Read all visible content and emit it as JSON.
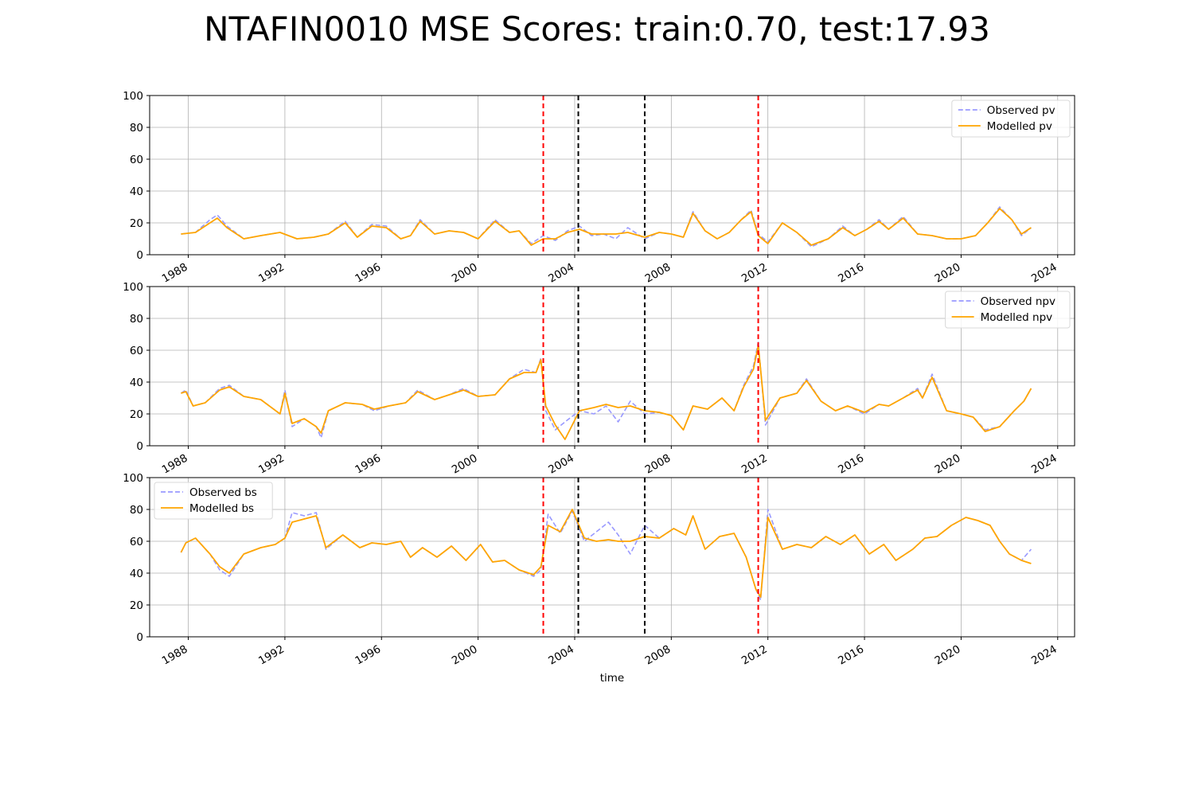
{
  "title": "NTAFIN0010 MSE Scores: train:0.70, test:17.93",
  "colors": {
    "observed": "#9999ff",
    "modelled": "#ffa500",
    "red_vline": "#ff0000",
    "black_vline": "#000000",
    "grid": "#b0b0b0"
  },
  "chart_data": [
    {
      "type": "line",
      "panel": "pv",
      "title": "",
      "xlabel": "",
      "ylabel": "",
      "ylim": [
        0,
        100
      ],
      "yticks": [
        0,
        20,
        40,
        60,
        80,
        100
      ],
      "xlim": [
        1986.4,
        2024.7
      ],
      "xticks": [
        1988,
        1992,
        1996,
        2000,
        2004,
        2008,
        2012,
        2016,
        2020,
        2024
      ],
      "grid": true,
      "legend_position": "upper right",
      "vertical_lines": [
        {
          "x": 2002.7,
          "color": "red"
        },
        {
          "x": 2004.15,
          "color": "black"
        },
        {
          "x": 2006.9,
          "color": "black"
        },
        {
          "x": 2011.6,
          "color": "red"
        }
      ],
      "series": [
        {
          "name": "Observed pv",
          "style": "dashed",
          "x": [
            1987.7,
            1988.3,
            1988.9,
            1989.2,
            1989.6,
            1990.3,
            1991.0,
            1991.8,
            1992.5,
            1993.2,
            1993.8,
            1994.5,
            1995.0,
            1995.6,
            1996.2,
            1996.8,
            1997.2,
            1997.6,
            1998.2,
            1998.8,
            1999.4,
            2000.0,
            2000.7,
            2001.3,
            2001.7,
            2002.2,
            2002.7,
            2003.2,
            2003.7,
            2004.2,
            2004.7,
            2005.2,
            2005.7,
            2006.2,
            2006.9,
            2007.5,
            2008.0,
            2008.5,
            2008.9,
            2009.4,
            2009.9,
            2010.4,
            2010.9,
            2011.3,
            2011.6,
            2012.0,
            2012.6,
            2013.2,
            2013.8,
            2014.5,
            2015.1,
            2015.6,
            2016.1,
            2016.6,
            2017.0,
            2017.6,
            2018.2,
            2018.8,
            2019.4,
            2020.0,
            2020.6,
            2021.1,
            2021.6,
            2022.1,
            2022.5,
            2022.9
          ],
          "y": [
            13,
            14,
            22,
            25,
            18,
            10,
            12,
            14,
            10,
            11,
            13,
            21,
            11,
            19,
            18,
            10,
            12,
            22,
            13,
            15,
            14,
            10,
            22,
            14,
            15,
            7,
            12,
            9,
            15,
            18,
            12,
            13,
            10,
            17,
            10,
            14,
            13,
            11,
            27,
            15,
            10,
            14,
            22,
            28,
            13,
            8,
            20,
            14,
            5,
            10,
            18,
            12,
            16,
            22,
            16,
            24,
            13,
            12,
            10,
            10,
            12,
            20,
            30,
            22,
            12,
            17
          ]
        },
        {
          "name": "Modelled pv",
          "style": "solid",
          "x": [
            1987.7,
            1988.3,
            1988.9,
            1989.2,
            1989.6,
            1990.3,
            1991.0,
            1991.8,
            1992.5,
            1993.2,
            1993.8,
            1994.5,
            1995.0,
            1995.6,
            1996.2,
            1996.8,
            1997.2,
            1997.6,
            1998.2,
            1998.8,
            1999.4,
            2000.0,
            2000.7,
            2001.3,
            2001.7,
            2002.2,
            2002.7,
            2003.2,
            2003.7,
            2004.2,
            2004.7,
            2005.2,
            2005.7,
            2006.2,
            2006.9,
            2007.5,
            2008.0,
            2008.5,
            2008.9,
            2009.4,
            2009.9,
            2010.4,
            2010.9,
            2011.3,
            2011.6,
            2012.0,
            2012.6,
            2013.2,
            2013.8,
            2014.5,
            2015.1,
            2015.6,
            2016.1,
            2016.6,
            2017.0,
            2017.6,
            2018.2,
            2018.8,
            2019.4,
            2020.0,
            2020.6,
            2021.1,
            2021.6,
            2022.1,
            2022.5,
            2022.9
          ],
          "y": [
            13,
            14,
            20,
            23,
            17,
            10,
            12,
            14,
            10,
            11,
            13,
            20,
            11,
            18,
            17,
            10,
            12,
            21,
            13,
            15,
            14,
            10,
            21,
            14,
            15,
            6,
            10,
            10,
            14,
            16,
            13,
            13,
            13,
            14,
            11,
            14,
            13,
            11,
            26,
            15,
            10,
            14,
            22,
            27,
            12,
            7,
            20,
            14,
            6,
            10,
            17,
            12,
            16,
            21,
            16,
            23,
            13,
            12,
            10,
            10,
            12,
            20,
            29,
            22,
            13,
            17
          ]
        }
      ]
    },
    {
      "type": "line",
      "panel": "npv",
      "title": "",
      "xlabel": "",
      "ylabel": "",
      "ylim": [
        0,
        100
      ],
      "yticks": [
        0,
        20,
        40,
        60,
        80,
        100
      ],
      "xlim": [
        1986.4,
        2024.7
      ],
      "xticks": [
        1988,
        1992,
        1996,
        2000,
        2004,
        2008,
        2012,
        2016,
        2020,
        2024
      ],
      "grid": true,
      "legend_position": "upper right",
      "vertical_lines": [
        {
          "x": 2002.7,
          "color": "red"
        },
        {
          "x": 2004.15,
          "color": "black"
        },
        {
          "x": 2006.9,
          "color": "black"
        },
        {
          "x": 2011.6,
          "color": "red"
        }
      ],
      "series": [
        {
          "name": "Observed npv",
          "style": "dashed",
          "x": [
            1987.7,
            1987.9,
            1988.2,
            1988.7,
            1989.3,
            1989.7,
            1990.3,
            1991.0,
            1991.8,
            1992.0,
            1992.3,
            1992.8,
            1993.3,
            1993.5,
            1993.8,
            1994.5,
            1995.2,
            1995.7,
            1996.3,
            1997.0,
            1997.5,
            1998.2,
            1998.8,
            1999.4,
            2000.0,
            2000.7,
            2001.3,
            2001.9,
            2002.4,
            2002.6,
            2002.8,
            2003.2,
            2003.6,
            2004.2,
            2004.8,
            2005.3,
            2005.8,
            2006.3,
            2006.9,
            2007.5,
            2008.0,
            2008.5,
            2008.9,
            2009.5,
            2010.1,
            2010.6,
            2011.0,
            2011.4,
            2011.6,
            2011.9,
            2012.5,
            2013.2,
            2013.6,
            2014.2,
            2014.8,
            2015.3,
            2016.0,
            2016.6,
            2017.0,
            2017.6,
            2018.2,
            2018.4,
            2018.8,
            2019.4,
            2020.0,
            2020.5,
            2021.0,
            2021.6,
            2022.2,
            2022.6,
            2022.9
          ],
          "y": [
            33,
            35,
            25,
            27,
            36,
            38,
            31,
            29,
            20,
            35,
            12,
            17,
            12,
            5,
            22,
            27,
            26,
            22,
            25,
            27,
            35,
            29,
            32,
            36,
            31,
            32,
            42,
            48,
            46,
            55,
            22,
            10,
            15,
            22,
            20,
            25,
            15,
            28,
            20,
            21,
            19,
            10,
            25,
            23,
            30,
            22,
            38,
            50,
            65,
            13,
            30,
            33,
            42,
            28,
            22,
            25,
            20,
            26,
            25,
            30,
            36,
            30,
            45,
            22,
            20,
            18,
            10,
            12,
            22,
            28,
            36
          ]
        },
        {
          "name": "Modelled npv",
          "style": "solid",
          "x": [
            1987.7,
            1987.9,
            1988.2,
            1988.7,
            1989.3,
            1989.7,
            1990.3,
            1991.0,
            1991.8,
            1992.0,
            1992.3,
            1992.8,
            1993.3,
            1993.5,
            1993.8,
            1994.5,
            1995.2,
            1995.7,
            1996.3,
            1997.0,
            1997.5,
            1998.2,
            1998.8,
            1999.4,
            2000.0,
            2000.7,
            2001.3,
            2001.9,
            2002.4,
            2002.6,
            2002.8,
            2003.2,
            2003.6,
            2004.2,
            2004.8,
            2005.3,
            2005.8,
            2006.3,
            2006.9,
            2007.5,
            2008.0,
            2008.5,
            2008.9,
            2009.5,
            2010.1,
            2010.6,
            2011.0,
            2011.4,
            2011.6,
            2011.9,
            2012.5,
            2013.2,
            2013.6,
            2014.2,
            2014.8,
            2015.3,
            2016.0,
            2016.6,
            2017.0,
            2017.6,
            2018.2,
            2018.4,
            2018.8,
            2019.4,
            2020.0,
            2020.5,
            2021.0,
            2021.6,
            2022.2,
            2022.6,
            2022.9
          ],
          "y": [
            33,
            34,
            25,
            27,
            35,
            37,
            31,
            29,
            20,
            33,
            14,
            17,
            12,
            8,
            22,
            27,
            26,
            23,
            25,
            27,
            34,
            29,
            32,
            35,
            31,
            32,
            42,
            46,
            46,
            54,
            25,
            13,
            4,
            22,
            24,
            26,
            24,
            25,
            22,
            21,
            19,
            10,
            25,
            23,
            30,
            22,
            37,
            48,
            63,
            16,
            30,
            33,
            41,
            28,
            22,
            25,
            21,
            26,
            25,
            30,
            35,
            30,
            43,
            22,
            20,
            18,
            9,
            12,
            22,
            28,
            36
          ]
        }
      ]
    },
    {
      "type": "line",
      "panel": "bs",
      "title": "",
      "xlabel": "time",
      "ylabel": "",
      "ylim": [
        0,
        100
      ],
      "yticks": [
        0,
        20,
        40,
        60,
        80,
        100
      ],
      "xlim": [
        1986.4,
        2024.7
      ],
      "xticks": [
        1988,
        1992,
        1996,
        2000,
        2004,
        2008,
        2012,
        2016,
        2020,
        2024
      ],
      "grid": true,
      "legend_position": "upper left",
      "vertical_lines": [
        {
          "x": 2002.7,
          "color": "red"
        },
        {
          "x": 2004.15,
          "color": "black"
        },
        {
          "x": 2006.9,
          "color": "black"
        },
        {
          "x": 2011.6,
          "color": "red"
        }
      ],
      "series": [
        {
          "name": "Observed bs",
          "style": "dashed",
          "x": [
            1987.7,
            1987.9,
            1988.3,
            1988.9,
            1989.3,
            1989.7,
            1990.3,
            1991.0,
            1991.6,
            1992.0,
            1992.3,
            1992.8,
            1993.3,
            1993.7,
            1994.4,
            1995.1,
            1995.6,
            1996.2,
            1996.8,
            1997.2,
            1997.7,
            1998.3,
            1998.9,
            1999.5,
            2000.1,
            2000.6,
            2001.1,
            2001.7,
            2002.3,
            2002.6,
            2002.9,
            2003.4,
            2003.9,
            2004.4,
            2004.9,
            2005.4,
            2005.8,
            2006.3,
            2006.9,
            2007.5,
            2008.1,
            2008.6,
            2008.9,
            2009.4,
            2010.0,
            2010.6,
            2011.1,
            2011.5,
            2011.7,
            2012.0,
            2012.6,
            2013.2,
            2013.8,
            2014.4,
            2015.0,
            2015.6,
            2016.2,
            2016.8,
            2017.3,
            2018.0,
            2018.5,
            2019.0,
            2019.6,
            2020.2,
            2020.7,
            2021.2,
            2021.6,
            2022.0,
            2022.5,
            2022.9
          ],
          "y": [
            53,
            59,
            62,
            52,
            42,
            38,
            52,
            56,
            58,
            62,
            78,
            76,
            78,
            55,
            64,
            56,
            59,
            58,
            60,
            50,
            56,
            50,
            57,
            48,
            58,
            47,
            48,
            42,
            38,
            42,
            77,
            65,
            79,
            60,
            66,
            72,
            64,
            52,
            70,
            62,
            68,
            64,
            76,
            55,
            63,
            65,
            50,
            30,
            23,
            80,
            55,
            58,
            56,
            63,
            58,
            64,
            52,
            58,
            48,
            55,
            62,
            63,
            70,
            75,
            73,
            70,
            60,
            52,
            48,
            55
          ]
        },
        {
          "name": "Modelled bs",
          "style": "solid",
          "x": [
            1987.7,
            1987.9,
            1988.3,
            1988.9,
            1989.3,
            1989.7,
            1990.3,
            1991.0,
            1991.6,
            1992.0,
            1992.3,
            1992.8,
            1993.3,
            1993.7,
            1994.4,
            1995.1,
            1995.6,
            1996.2,
            1996.8,
            1997.2,
            1997.7,
            1998.3,
            1998.9,
            1999.5,
            2000.1,
            2000.6,
            2001.1,
            2001.7,
            2002.3,
            2002.6,
            2002.9,
            2003.4,
            2003.9,
            2004.4,
            2004.9,
            2005.4,
            2005.8,
            2006.3,
            2006.9,
            2007.5,
            2008.1,
            2008.6,
            2008.9,
            2009.4,
            2010.0,
            2010.6,
            2011.1,
            2011.5,
            2011.7,
            2012.0,
            2012.6,
            2013.2,
            2013.8,
            2014.4,
            2015.0,
            2015.6,
            2016.2,
            2016.8,
            2017.3,
            2018.0,
            2018.5,
            2019.0,
            2019.6,
            2020.2,
            2020.7,
            2021.2,
            2021.6,
            2022.0,
            2022.5,
            2022.9
          ],
          "y": [
            53,
            59,
            62,
            52,
            44,
            40,
            52,
            56,
            58,
            62,
            72,
            74,
            76,
            56,
            64,
            56,
            59,
            58,
            60,
            50,
            56,
            50,
            57,
            48,
            58,
            47,
            48,
            42,
            39,
            44,
            70,
            66,
            80,
            62,
            60,
            61,
            60,
            60,
            63,
            62,
            68,
            64,
            76,
            55,
            63,
            65,
            50,
            30,
            25,
            75,
            55,
            58,
            56,
            63,
            58,
            64,
            52,
            58,
            48,
            55,
            62,
            63,
            70,
            75,
            73,
            70,
            60,
            52,
            48,
            46
          ]
        }
      ]
    }
  ]
}
